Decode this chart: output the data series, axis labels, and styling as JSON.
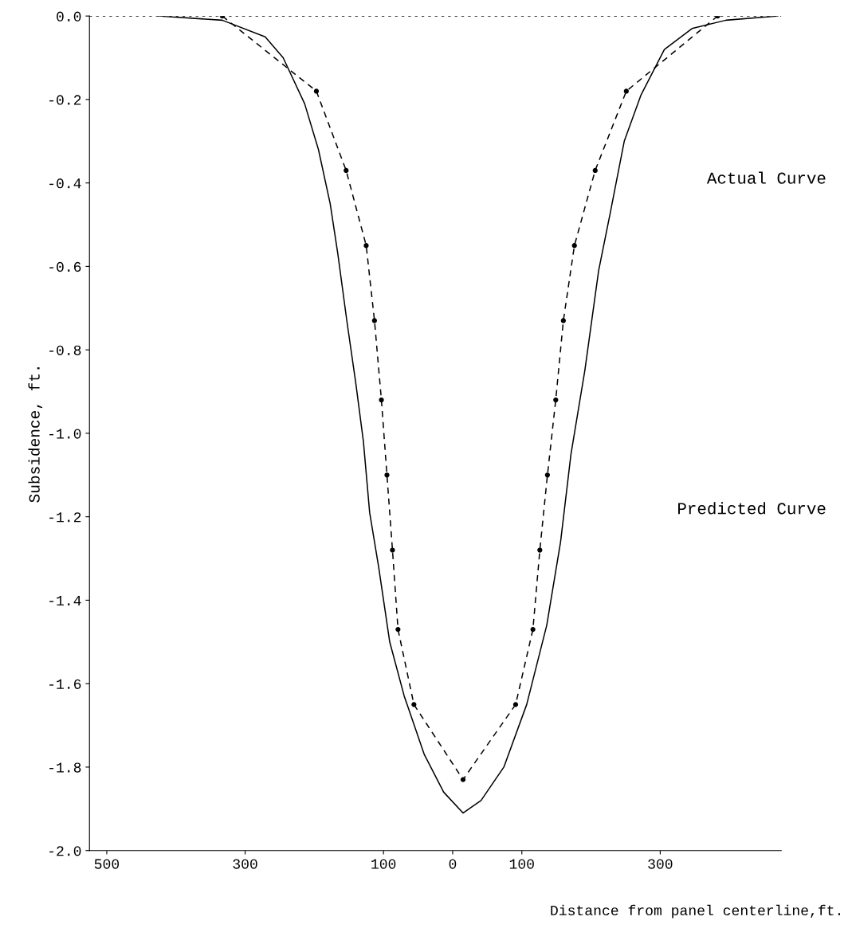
{
  "chart_data": {
    "type": "line",
    "xlabel": "Distance from panel centerline,ft.",
    "ylabel": "Subsidence, ft.",
    "annotations": [
      "Actual Curve",
      "Predicted Curve"
    ],
    "xlim": [
      -525,
      475
    ],
    "xticks": [
      {
        "value": -500,
        "label": "500"
      },
      {
        "value": -300,
        "label": "300"
      },
      {
        "value": -100,
        "label": "100"
      },
      0,
      100,
      300
    ],
    "ylim": [
      -2.0,
      0.0
    ],
    "yticks": [
      {
        "value": 0,
        "label": "0.0"
      },
      -0.2,
      -0.4,
      -0.6,
      -0.8,
      {
        "value": -1,
        "label": "-1.0"
      },
      -1.2,
      -1.4,
      -1.6,
      -1.8,
      {
        "value": -2,
        "label": "-2.0"
      }
    ],
    "ref_lines": [
      {
        "axis": "y",
        "value": 0.0,
        "color": "#000000",
        "line_style": "dotted"
      }
    ],
    "grid": false,
    "series": [
      {
        "color": "#000000",
        "line_style": "dashed",
        "marker": "circle",
        "x": [
          -333,
          -197,
          -154,
          -125,
          -113,
          -103,
          -95,
          -87,
          -79,
          -56,
          15,
          91,
          116,
          126,
          137,
          149,
          160,
          176,
          206,
          251,
          383
        ],
        "values": [
          0.0,
          -0.18,
          -0.37,
          -0.55,
          -0.73,
          -0.92,
          -1.1,
          -1.28,
          -1.47,
          -1.65,
          -1.83,
          -1.65,
          -1.47,
          -1.28,
          -1.1,
          -0.92,
          -0.73,
          -0.55,
          -0.37,
          -0.18,
          0.0
        ]
      },
      {
        "color": "#000000",
        "line_style": "solid",
        "marker": "none",
        "x": [
          -425,
          -333,
          -271,
          -245,
          -214,
          -194,
          -177,
          -166,
          -153,
          -140,
          -129,
          -120,
          -107,
          -91,
          -70,
          -41,
          -13,
          15,
          41,
          74,
          107,
          136,
          156,
          171,
          191,
          211,
          228,
          248,
          272,
          306,
          346,
          395,
          470
        ],
        "values": [
          0.0,
          -0.01,
          -0.05,
          -0.1,
          -0.21,
          -0.32,
          -0.45,
          -0.57,
          -0.73,
          -0.88,
          -1.02,
          -1.19,
          -1.32,
          -1.5,
          -1.63,
          -1.77,
          -1.86,
          -1.91,
          -1.88,
          -1.8,
          -1.65,
          -1.46,
          -1.26,
          -1.05,
          -0.85,
          -0.61,
          -0.47,
          -0.3,
          -0.19,
          -0.08,
          -0.03,
          -0.01,
          0.0
        ]
      }
    ]
  }
}
